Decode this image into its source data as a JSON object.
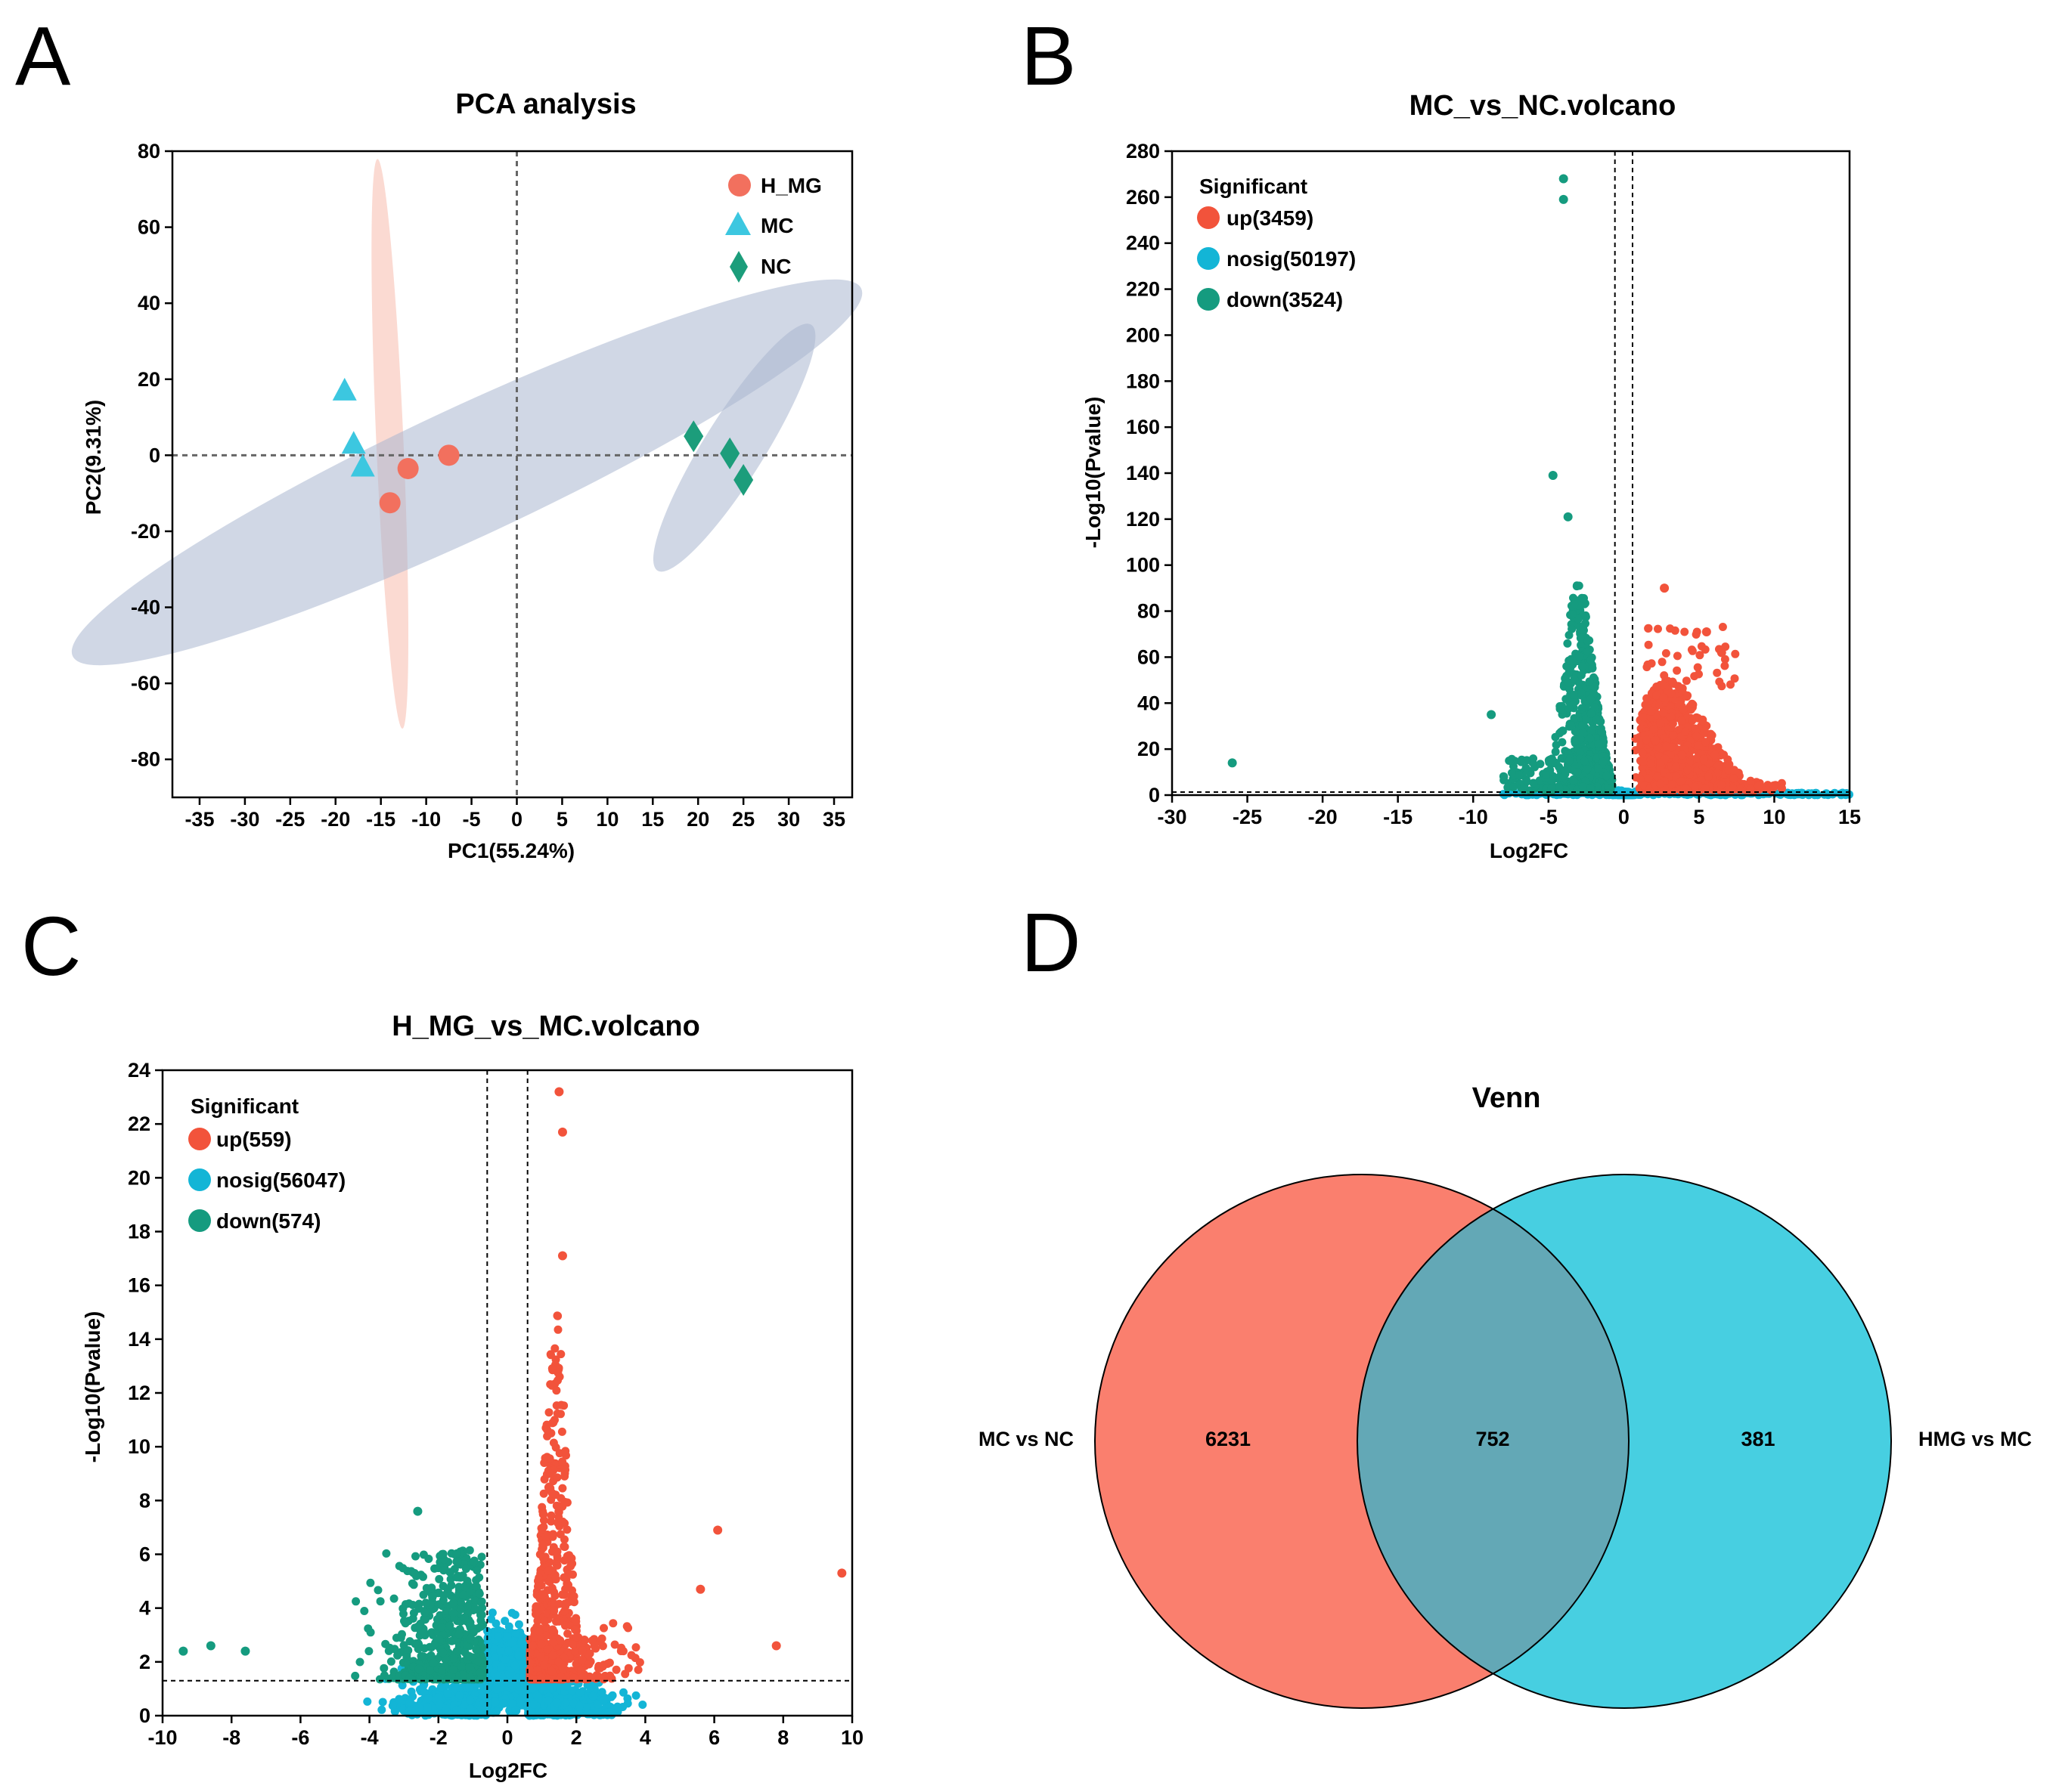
{
  "colors": {
    "red": "#f2533b",
    "cyan": "#13b5d6",
    "teal": "#159b7f",
    "pca_h_mg": "#f2705e",
    "pca_mc": "#3cc7e0",
    "pca_nc": "#1c9d7b",
    "venn_left": "#fa7f6e",
    "venn_right": "#47cfe1",
    "venn_overlap": "#63a8b6",
    "ellipse_blue": "#a9b6cf",
    "ellipse_pink": "#f9c2b4"
  },
  "panels": {
    "A": "A",
    "B": "B",
    "C": "C",
    "D": "D"
  },
  "chart_data": [
    {
      "id": "pca",
      "type": "scatter",
      "title": "PCA analysis",
      "xlabel": "PC1(55.24%)",
      "ylabel": "PC2(9.31%)",
      "xlim": [
        -38,
        37
      ],
      "ylim": [
        -90,
        80
      ],
      "xticks": [
        -35,
        -30,
        -25,
        -20,
        -15,
        -10,
        -5,
        0,
        5,
        10,
        15,
        20,
        25,
        30,
        35
      ],
      "yticks": [
        -80,
        -60,
        -40,
        -20,
        0,
        20,
        40,
        60,
        80
      ],
      "series": [
        {
          "name": "H_MG",
          "marker": "circle",
          "points": [
            [
              -7.5,
              0
            ],
            [
              -12,
              -3.5
            ],
            [
              -14,
              -12.5
            ]
          ]
        },
        {
          "name": "MC",
          "marker": "triangle",
          "points": [
            [
              -19,
              17
            ],
            [
              -18,
              3
            ],
            [
              -17,
              -3
            ]
          ]
        },
        {
          "name": "NC",
          "marker": "diamond",
          "points": [
            [
              19.5,
              5
            ],
            [
              23.5,
              0.5
            ],
            [
              25,
              -6.5
            ]
          ]
        }
      ],
      "ellipses": [
        {
          "group": "H_MG",
          "center": [
            -14,
            3
          ],
          "semi_axes": [
            1.5,
            75
          ],
          "angle_deg": 2.5
        },
        {
          "group": "MC",
          "center": [
            -5.5,
            -4.5
          ],
          "semi_axes": [
            48,
            17
          ],
          "angle_deg": 25
        },
        {
          "group": "NC",
          "center": [
            24,
            2
          ],
          "semi_axes": [
            16,
            8
          ],
          "angle_deg": 58
        }
      ]
    },
    {
      "id": "volcano_mc_nc",
      "type": "scatter",
      "title": "MC_vs_NC.volcano",
      "xlabel": "Log2FC",
      "ylabel": "-Log10(Pvalue)",
      "xlim": [
        -30,
        15
      ],
      "ylim": [
        0,
        280
      ],
      "xticks": [
        -30,
        -25,
        -20,
        -15,
        -10,
        -5,
        0,
        5,
        10,
        15
      ],
      "yticks": [
        0,
        20,
        40,
        60,
        80,
        100,
        120,
        140,
        160,
        180,
        200,
        220,
        240,
        260,
        280
      ],
      "thresholds": {
        "x": [
          -0.585,
          0.585
        ],
        "y": 1.3
      },
      "legend_title": "Significant",
      "series": [
        {
          "name": "up(3459)",
          "group": "up",
          "count": 3459
        },
        {
          "name": "nosig(50197)",
          "group": "nosig",
          "count": 50197
        },
        {
          "name": "down(3524)",
          "group": "down",
          "count": 3524
        }
      ],
      "notable_points": [
        {
          "group": "down",
          "x": -4,
          "y": 268
        },
        {
          "group": "down",
          "x": -4,
          "y": 259
        },
        {
          "group": "down",
          "x": -26,
          "y": 14
        },
        {
          "group": "down",
          "x": -4.7,
          "y": 139
        },
        {
          "group": "down",
          "x": -3.7,
          "y": 121
        },
        {
          "group": "down",
          "x": -8.8,
          "y": 35
        },
        {
          "group": "up",
          "x": 2.7,
          "y": 90
        },
        {
          "group": "up",
          "x": 6.5,
          "y": 62
        },
        {
          "group": "up",
          "x": 5.5,
          "y": 71
        }
      ]
    },
    {
      "id": "volcano_hmg_mc",
      "type": "scatter",
      "title": "H_MG_vs_MC.volcano",
      "xlabel": "Log2FC",
      "ylabel": "-Log10(Pvalue)",
      "xlim": [
        -10,
        10
      ],
      "ylim": [
        0,
        24
      ],
      "xticks": [
        -10,
        -8,
        -6,
        -4,
        -2,
        0,
        2,
        4,
        6,
        8,
        10
      ],
      "yticks": [
        0,
        2,
        4,
        6,
        8,
        10,
        12,
        14,
        16,
        18,
        20,
        22,
        24
      ],
      "thresholds": {
        "x": [
          -0.585,
          0.585
        ],
        "y": 1.3
      },
      "legend_title": "Significant",
      "series": [
        {
          "name": "up(559)",
          "group": "up",
          "count": 559
        },
        {
          "name": "nosig(56047)",
          "group": "nosig",
          "count": 56047
        },
        {
          "name": "down(574)",
          "group": "down",
          "count": 574
        }
      ],
      "notable_points": [
        {
          "group": "up",
          "x": 1.5,
          "y": 23.2
        },
        {
          "group": "up",
          "x": 1.6,
          "y": 21.7
        },
        {
          "group": "up",
          "x": 1.6,
          "y": 17.1
        },
        {
          "group": "up",
          "x": 9.7,
          "y": 5.3
        },
        {
          "group": "up",
          "x": 6.1,
          "y": 6.9
        },
        {
          "group": "up",
          "x": 7.8,
          "y": 2.6
        },
        {
          "group": "up",
          "x": 5.6,
          "y": 4.7
        },
        {
          "group": "down",
          "x": -2.6,
          "y": 7.6
        },
        {
          "group": "down",
          "x": -9.4,
          "y": 2.4
        },
        {
          "group": "down",
          "x": -8.6,
          "y": 2.6
        },
        {
          "group": "down",
          "x": -7.6,
          "y": 2.4
        }
      ]
    },
    {
      "id": "venn",
      "type": "venn",
      "title": "Venn",
      "sets": [
        {
          "name": "MC vs NC",
          "only": 6231
        },
        {
          "name": "HMG vs MC",
          "only": 381
        }
      ],
      "overlap": 752
    }
  ]
}
